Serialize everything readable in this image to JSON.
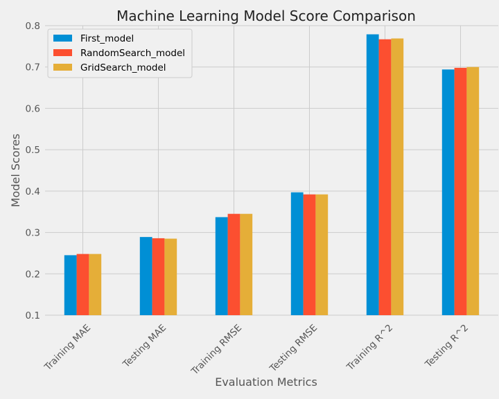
{
  "chart_data": {
    "type": "bar",
    "title": "Machine Learning Model Score Comparison",
    "xlabel": "Evaluation Metrics",
    "ylabel": "Model Scores",
    "categories": [
      "Training MAE",
      "Testing MAE",
      "Training RMSE",
      "Testing RMSE",
      "Training R^2",
      "Testing R^2"
    ],
    "series": [
      {
        "name": "First_model",
        "color": "#008fd5",
        "values": [
          0.245,
          0.289,
          0.337,
          0.397,
          0.779,
          0.694
        ]
      },
      {
        "name": "RandomSearch_model",
        "color": "#fc4f30",
        "values": [
          0.248,
          0.286,
          0.345,
          0.392,
          0.767,
          0.698
        ]
      },
      {
        "name": "GridSearch_model",
        "color": "#e5ae38",
        "values": [
          0.248,
          0.285,
          0.345,
          0.392,
          0.769,
          0.7
        ]
      }
    ],
    "ylim": [
      0.1,
      0.8
    ],
    "yticks": [
      "0.1",
      "0.2",
      "0.3",
      "0.4",
      "0.5",
      "0.6",
      "0.7",
      "0.8"
    ],
    "grid": true,
    "legend_position": "top-left"
  }
}
